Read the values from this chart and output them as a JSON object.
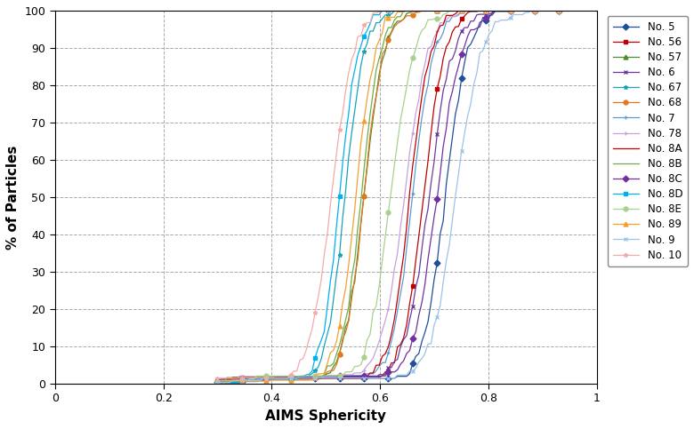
{
  "series": [
    {
      "label": "No. 5",
      "color": "#1F4E9C",
      "marker": "D",
      "mid": 0.72,
      "spread": 0.13,
      "k_factor": 6.5
    },
    {
      "label": "No. 56",
      "color": "#C00000",
      "marker": "s",
      "mid": 0.68,
      "spread": 0.125,
      "k_factor": 6.5
    },
    {
      "label": "No. 57",
      "color": "#4E8A2E",
      "marker": "^",
      "mid": 0.57,
      "spread": 0.12,
      "k_factor": 6.5
    },
    {
      "label": "No. 6",
      "color": "#6B3A9E",
      "marker": "x",
      "mid": 0.69,
      "spread": 0.13,
      "k_factor": 6.0
    },
    {
      "label": "No. 67",
      "color": "#17A3B8",
      "marker": "*",
      "mid": 0.535,
      "spread": 0.11,
      "k_factor": 6.5
    },
    {
      "label": "No. 68",
      "color": "#E07820",
      "marker": "o",
      "mid": 0.57,
      "spread": 0.12,
      "k_factor": 6.5
    },
    {
      "label": "No. 7",
      "color": "#5B9BD5",
      "marker": "+",
      "mid": 0.66,
      "spread": 0.125,
      "k_factor": 6.5
    },
    {
      "label": "No. 78",
      "color": "#C9A0DC",
      "marker": "+",
      "mid": 0.645,
      "spread": 0.13,
      "k_factor": 6.0
    },
    {
      "label": "No. 8A",
      "color": "#C00000",
      "marker": "None",
      "mid": 0.655,
      "spread": 0.12,
      "k_factor": 6.5
    },
    {
      "label": "No. 8B",
      "color": "#70AD47",
      "marker": "None",
      "mid": 0.565,
      "spread": 0.115,
      "k_factor": 6.5
    },
    {
      "label": "No. 8C",
      "color": "#7030A0",
      "marker": "D",
      "mid": 0.705,
      "spread": 0.135,
      "k_factor": 6.0
    },
    {
      "label": "No. 8D",
      "color": "#00B0F0",
      "marker": "s",
      "mid": 0.525,
      "spread": 0.11,
      "k_factor": 6.5
    },
    {
      "label": "No. 8E",
      "color": "#A9D18E",
      "marker": "o",
      "mid": 0.62,
      "spread": 0.125,
      "k_factor": 6.0
    },
    {
      "label": "No. 89",
      "color": "#F4A030",
      "marker": "^",
      "mid": 0.555,
      "spread": 0.115,
      "k_factor": 6.5
    },
    {
      "label": "No. 9",
      "color": "#9DC3E6",
      "marker": "x",
      "mid": 0.74,
      "spread": 0.14,
      "k_factor": 6.0
    },
    {
      "label": "No. 10",
      "color": "#F4AAAA",
      "marker": "*",
      "mid": 0.51,
      "spread": 0.12,
      "k_factor": 6.0
    }
  ],
  "xlim": [
    0,
    1
  ],
  "ylim": [
    0,
    100
  ],
  "xticks": [
    0,
    0.2,
    0.4,
    0.6,
    0.8,
    1.0
  ],
  "yticks": [
    0,
    10,
    20,
    30,
    40,
    50,
    60,
    70,
    80,
    90,
    100
  ],
  "xlabel": "AIMS Sphericity",
  "ylabel": "% of Particles",
  "grid_color": "#AAAAAA",
  "grid_style": "--",
  "background_color": "#FFFFFF",
  "n_points": 120,
  "marker_every": 8
}
